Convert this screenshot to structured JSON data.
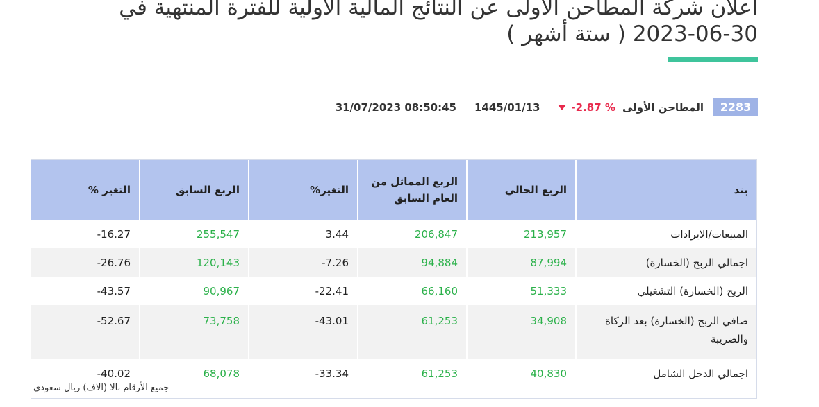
{
  "headline": "اعلان شركة المطاحن الأولى عن النتائج المالية الأولية للفترة المنتهية في 30-06-2023 ( ستة أشهر )",
  "colors": {
    "accent": "#3fc49c",
    "badge": "#9fb3e6",
    "header_bg": "#b3c4ee",
    "positive": "#2bb14a",
    "negative": "#e8294c"
  },
  "stock": {
    "symbol": "2283",
    "name": "المطاحن الأولى",
    "change": "-2.87 %",
    "change_icon": "triangle-down-icon",
    "hijri_date": "1445/01/13",
    "datetime": "31/07/2023 08:50:45"
  },
  "table": {
    "headers": [
      "بند",
      "الربع الحالي",
      "الربع المماثل من العام السابق",
      "التغير%",
      "الربع السابق",
      "التغير %"
    ],
    "rows": [
      [
        "المبيعات/الايرادات",
        "213,957",
        "206,847",
        "3.44",
        "255,547",
        "16.27-"
      ],
      [
        "اجمالي الربح (الخسارة)",
        "87,994",
        "94,884",
        "7.26-",
        "120,143",
        "26.76-"
      ],
      [
        "الربح (الخسارة) التشغيلي",
        "51,333",
        "66,160",
        "22.41-",
        "90,967",
        "43.57-"
      ],
      [
        "صافي الربح (الخسارة) بعد الزكاة والضريبة",
        "34,908",
        "61,253",
        "43.01-",
        "73,758",
        "52.67-"
      ],
      [
        "اجمالي الدخل الشامل",
        "40,830",
        "61,253",
        "33.34-",
        "68,078",
        "40.02-"
      ]
    ]
  },
  "footnote": "جميع الأرقام بالا (الاف) ريال سعودي"
}
